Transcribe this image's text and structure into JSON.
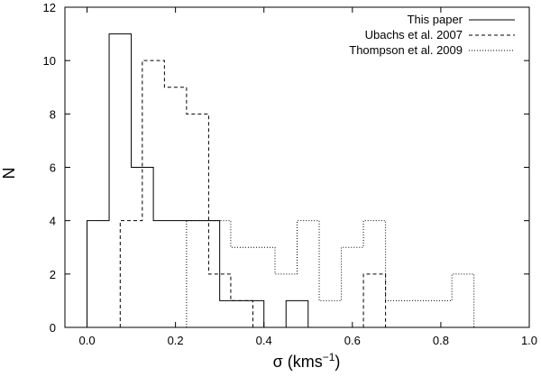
{
  "chart_data": {
    "type": "histogram",
    "xlabel": "σ (kms",
    "xlabel_exp": "−1",
    "ylabel": "N",
    "xlim": [
      -0.05,
      1.0
    ],
    "ylim": [
      0,
      12
    ],
    "xticks": [
      "0.0",
      "0.2",
      "0.4",
      "0.6",
      "0.8",
      "1.0"
    ],
    "yticks": [
      "0",
      "2",
      "4",
      "6",
      "8",
      "10",
      "12"
    ],
    "grid": false,
    "legend_position": "top-right",
    "series": [
      {
        "name": "This paper",
        "style": "solid",
        "bin_edges": [
          0.0,
          0.05,
          0.1,
          0.15,
          0.2,
          0.25,
          0.3,
          0.35,
          0.4,
          0.45,
          0.5
        ],
        "counts": [
          4,
          11,
          6,
          4,
          4,
          4,
          1,
          1,
          0,
          1
        ]
      },
      {
        "name": "Ubachs et al. 2007",
        "style": "dashed",
        "bin_edges": [
          0.075,
          0.125,
          0.175,
          0.225,
          0.275,
          0.325,
          0.375,
          0.425,
          0.475,
          0.525,
          0.575,
          0.625,
          0.675
        ],
        "counts": [
          4,
          10,
          9,
          8,
          2,
          1,
          0,
          0,
          0,
          0,
          0,
          2
        ]
      },
      {
        "name": "Thompson et al. 2009",
        "style": "dotted",
        "bin_edges": [
          0.225,
          0.275,
          0.325,
          0.375,
          0.425,
          0.475,
          0.525,
          0.575,
          0.625,
          0.675,
          0.725,
          0.775,
          0.825,
          0.875
        ],
        "counts": [
          4,
          4,
          3,
          3,
          2,
          4,
          1,
          3,
          4,
          1,
          1,
          1,
          2
        ]
      }
    ]
  }
}
